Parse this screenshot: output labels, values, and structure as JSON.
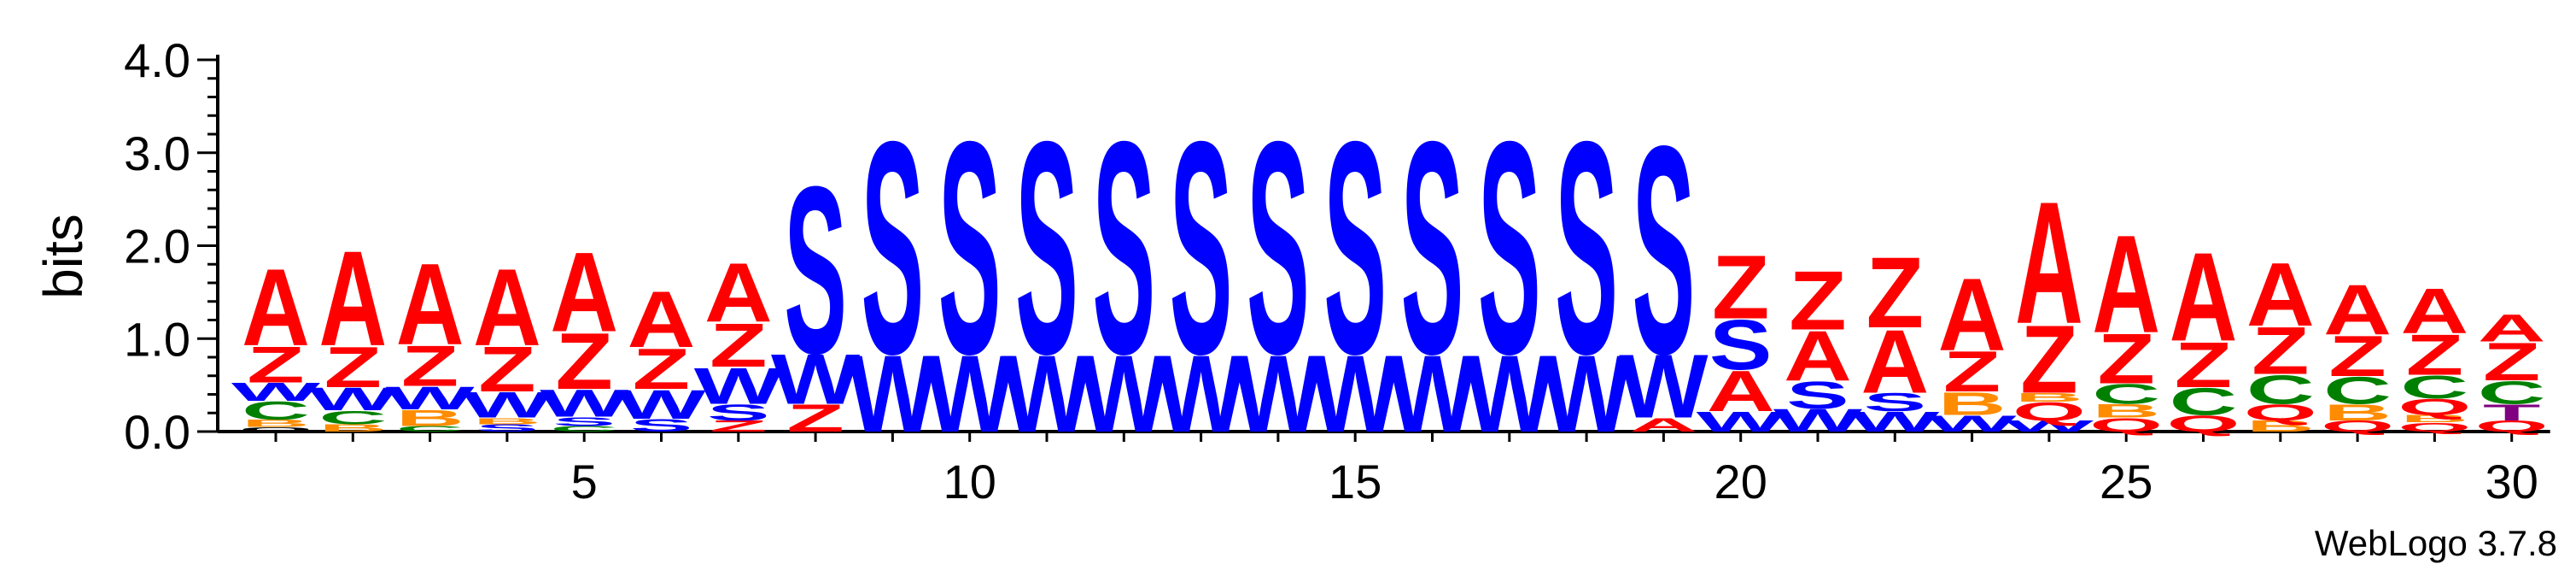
{
  "chart_data": {
    "type": "sequence-logo",
    "ylabel": "bits",
    "ylim": [
      0,
      4.0
    ],
    "y_ticks": [
      "0.0",
      "1.0",
      "2.0",
      "3.0",
      "4.0"
    ],
    "x_ticks": [
      5,
      10,
      15,
      20,
      25,
      30
    ],
    "positions": [
      1,
      30
    ],
    "credit": "WebLogo 3.7.8",
    "colors": {
      "A": "#ff0000",
      "Z": "#ff0000",
      "S": "#0000ff",
      "W": "#0000ff",
      "C": "#008000",
      "B": "#ff8c00",
      "Q": "#ff0000",
      "T": "#800080"
    },
    "columns": [
      {
        "pos": 1,
        "stack": [
          [
            "O",
            0.05
          ],
          [
            "B",
            0.08
          ],
          [
            "C",
            0.2
          ],
          [
            "W",
            0.2
          ],
          [
            "Z",
            0.4
          ],
          [
            "A",
            0.85
          ]
        ]
      },
      {
        "pos": 2,
        "stack": [
          [
            "B",
            0.08
          ],
          [
            "C",
            0.15
          ],
          [
            "W",
            0.25
          ],
          [
            "Z",
            0.45
          ],
          [
            "A",
            1.05
          ]
        ]
      },
      {
        "pos": 3,
        "stack": [
          [
            "C",
            0.06
          ],
          [
            "B",
            0.18
          ],
          [
            "W",
            0.25
          ],
          [
            "Z",
            0.45
          ],
          [
            "A",
            0.9
          ]
        ]
      },
      {
        "pos": 4,
        "stack": [
          [
            "S",
            0.08
          ],
          [
            "B",
            0.07
          ],
          [
            "W",
            0.28
          ],
          [
            "Z",
            0.5
          ],
          [
            "A",
            0.85
          ]
        ]
      },
      {
        "pos": 5,
        "stack": [
          [
            "C",
            0.06
          ],
          [
            "S",
            0.1
          ],
          [
            "W",
            0.3
          ],
          [
            "Z",
            0.62
          ],
          [
            "A",
            0.88
          ]
        ]
      },
      {
        "pos": 6,
        "stack": [
          [
            "S",
            0.14
          ],
          [
            "W",
            0.32
          ],
          [
            "Z",
            0.45
          ],
          [
            "A",
            0.62
          ]
        ]
      },
      {
        "pos": 7,
        "stack": [
          [
            "Z",
            0.12
          ],
          [
            "S",
            0.18
          ],
          [
            "W",
            0.4
          ],
          [
            "Z",
            0.48
          ],
          [
            "A",
            0.65
          ]
        ]
      },
      {
        "pos": 8,
        "stack": [
          [
            "Z",
            0.3
          ],
          [
            "W",
            0.55
          ],
          [
            "S",
            1.85
          ]
        ]
      },
      {
        "pos": 9,
        "stack": [
          [
            "W",
            0.85
          ],
          [
            "S",
            2.35
          ]
        ]
      },
      {
        "pos": 10,
        "stack": [
          [
            "W",
            0.85
          ],
          [
            "S",
            2.35
          ]
        ]
      },
      {
        "pos": 11,
        "stack": [
          [
            "W",
            0.85
          ],
          [
            "S",
            2.35
          ]
        ]
      },
      {
        "pos": 12,
        "stack": [
          [
            "W",
            0.85
          ],
          [
            "S",
            2.35
          ]
        ]
      },
      {
        "pos": 13,
        "stack": [
          [
            "W",
            0.85
          ],
          [
            "S",
            2.35
          ]
        ]
      },
      {
        "pos": 14,
        "stack": [
          [
            "W",
            0.85
          ],
          [
            "S",
            2.35
          ]
        ]
      },
      {
        "pos": 15,
        "stack": [
          [
            "W",
            0.85
          ],
          [
            "S",
            2.35
          ]
        ]
      },
      {
        "pos": 16,
        "stack": [
          [
            "W",
            0.85
          ],
          [
            "S",
            2.35
          ]
        ]
      },
      {
        "pos": 17,
        "stack": [
          [
            "W",
            0.85
          ],
          [
            "S",
            2.35
          ]
        ]
      },
      {
        "pos": 18,
        "stack": [
          [
            "W",
            0.85
          ],
          [
            "S",
            2.35
          ]
        ]
      },
      {
        "pos": 19,
        "stack": [
          [
            "A",
            0.15
          ],
          [
            "W",
            0.7
          ],
          [
            "S",
            2.3
          ]
        ]
      },
      {
        "pos": 20,
        "stack": [
          [
            "W",
            0.22
          ],
          [
            "A",
            0.45
          ],
          [
            "S",
            0.55
          ],
          [
            "Z",
            0.7
          ]
        ]
      },
      {
        "pos": 21,
        "stack": [
          [
            "W",
            0.25
          ],
          [
            "S",
            0.3
          ],
          [
            "A",
            0.55
          ],
          [
            "Z",
            0.65
          ]
        ]
      },
      {
        "pos": 22,
        "stack": [
          [
            "W",
            0.22
          ],
          [
            "S",
            0.2
          ],
          [
            "A",
            0.7
          ],
          [
            "Z",
            0.78
          ]
        ]
      },
      {
        "pos": 23,
        "stack": [
          [
            "W",
            0.18
          ],
          [
            "B",
            0.25
          ],
          [
            "Z",
            0.45
          ],
          [
            "A",
            0.8
          ]
        ]
      },
      {
        "pos": 24,
        "stack": [
          [
            "W",
            0.12
          ],
          [
            "Q",
            0.2
          ],
          [
            "B",
            0.1
          ],
          [
            "Z",
            0.75
          ],
          [
            "A",
            1.35
          ]
        ]
      },
      {
        "pos": 25,
        "stack": [
          [
            "Q",
            0.15
          ],
          [
            "B",
            0.15
          ],
          [
            "C",
            0.22
          ],
          [
            "Z",
            0.55
          ],
          [
            "A",
            1.08
          ]
        ]
      },
      {
        "pos": 26,
        "stack": [
          [
            "Q",
            0.18
          ],
          [
            "C",
            0.3
          ],
          [
            "Z",
            0.5
          ],
          [
            "A",
            0.98
          ]
        ]
      },
      {
        "pos": 27,
        "stack": [
          [
            "B",
            0.12
          ],
          [
            "Q",
            0.18
          ],
          [
            "C",
            0.32
          ],
          [
            "Z",
            0.52
          ],
          [
            "A",
            0.7
          ]
        ]
      },
      {
        "pos": 28,
        "stack": [
          [
            "Q",
            0.12
          ],
          [
            "B",
            0.18
          ],
          [
            "C",
            0.3
          ],
          [
            "Z",
            0.45
          ],
          [
            "A",
            0.55
          ]
        ]
      },
      {
        "pos": 29,
        "stack": [
          [
            "Q",
            0.1
          ],
          [
            "B",
            0.08
          ],
          [
            "Q",
            0.18
          ],
          [
            "C",
            0.25
          ],
          [
            "Z",
            0.45
          ],
          [
            "A",
            0.5
          ]
        ]
      },
      {
        "pos": 30,
        "stack": [
          [
            "Q",
            0.12
          ],
          [
            "T",
            0.18
          ],
          [
            "C",
            0.25
          ],
          [
            "Z",
            0.42
          ],
          [
            "A",
            0.3
          ]
        ]
      }
    ]
  }
}
